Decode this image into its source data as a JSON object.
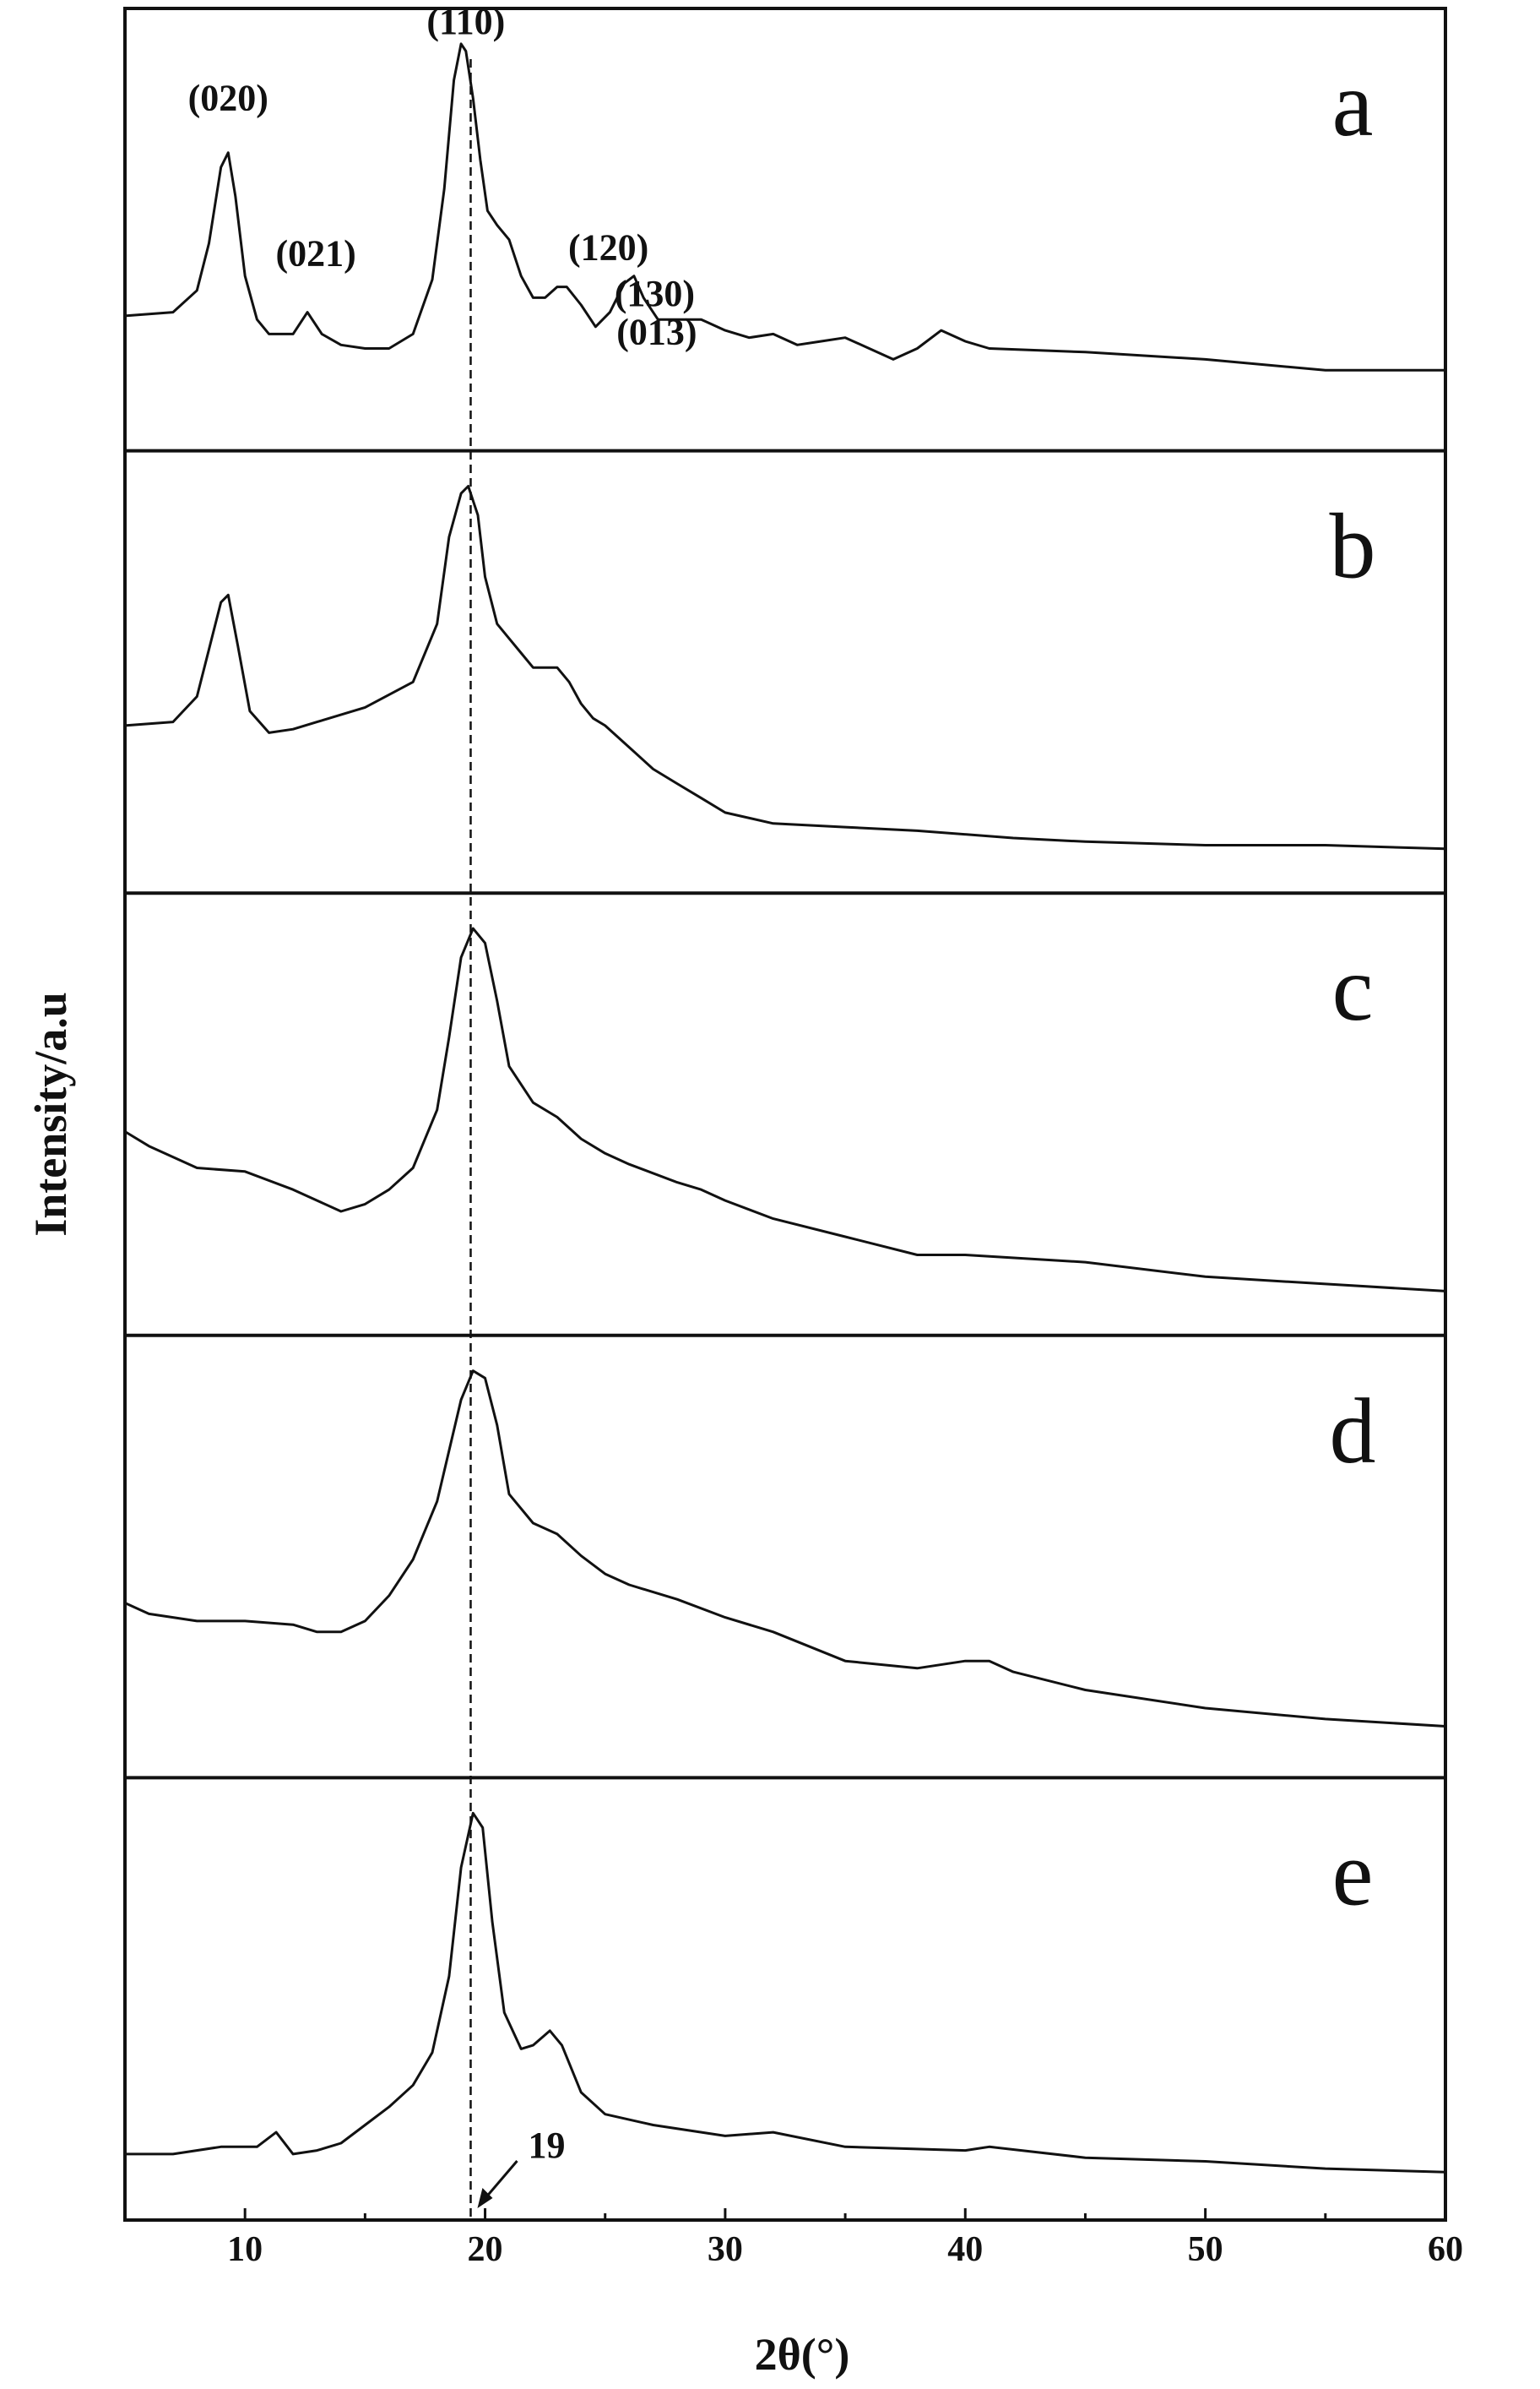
{
  "chart_data": {
    "type": "line",
    "title": "",
    "xlabel": "2θ(°)",
    "ylabel": "Intensity/a.u",
    "xlim": [
      5,
      60
    ],
    "xticks": [
      10,
      20,
      30,
      40,
      50,
      60
    ],
    "grid": false,
    "stacked_panels": true,
    "reference_line": {
      "x": 19.4,
      "label": "19",
      "style": "dashed"
    },
    "series": [
      {
        "panel": "a",
        "x": [
          5,
          7,
          8,
          8.5,
          9,
          9.3,
          9.6,
          10,
          10.5,
          11,
          12,
          12.6,
          13.2,
          14,
          15,
          16,
          17,
          17.8,
          18.3,
          18.7,
          19,
          19.2,
          19.5,
          19.8,
          20.1,
          20.5,
          21,
          21.5,
          22,
          22.5,
          23,
          23.4,
          24,
          24.6,
          25.2,
          25.8,
          26.2,
          26.6,
          27.2,
          28,
          29,
          30,
          31,
          32,
          33,
          34,
          35,
          36,
          37,
          38,
          39,
          40,
          41,
          45,
          50,
          55,
          60
        ],
        "y": [
          0.25,
          0.26,
          0.32,
          0.45,
          0.66,
          0.7,
          0.58,
          0.36,
          0.24,
          0.2,
          0.2,
          0.26,
          0.2,
          0.17,
          0.16,
          0.16,
          0.2,
          0.35,
          0.6,
          0.9,
          1.0,
          0.98,
          0.85,
          0.68,
          0.54,
          0.5,
          0.46,
          0.36,
          0.3,
          0.3,
          0.33,
          0.33,
          0.28,
          0.22,
          0.26,
          0.34,
          0.36,
          0.3,
          0.24,
          0.24,
          0.24,
          0.21,
          0.19,
          0.2,
          0.17,
          0.18,
          0.19,
          0.16,
          0.13,
          0.16,
          0.21,
          0.18,
          0.16,
          0.15,
          0.13,
          0.1,
          0.1
        ]
      },
      {
        "panel": "b",
        "x": [
          5,
          7,
          8,
          8.5,
          9,
          9.3,
          9.7,
          10.2,
          11,
          12,
          13,
          15,
          17,
          18,
          18.5,
          19,
          19.3,
          19.7,
          20,
          20.5,
          21,
          21.5,
          22,
          22.5,
          23,
          23.5,
          24,
          24.5,
          25,
          26,
          27,
          28,
          29,
          30,
          32,
          35,
          38,
          42,
          45,
          50,
          55,
          60
        ],
        "y": [
          0.34,
          0.35,
          0.42,
          0.55,
          0.68,
          0.7,
          0.56,
          0.38,
          0.32,
          0.33,
          0.35,
          0.39,
          0.46,
          0.62,
          0.86,
          0.98,
          1.0,
          0.92,
          0.75,
          0.62,
          0.58,
          0.54,
          0.5,
          0.5,
          0.5,
          0.46,
          0.4,
          0.36,
          0.34,
          0.28,
          0.22,
          0.18,
          0.14,
          0.1,
          0.07,
          0.06,
          0.05,
          0.03,
          0.02,
          0.01,
          0.01,
          0.0
        ]
      },
      {
        "panel": "c",
        "x": [
          5,
          6,
          8,
          10,
          12,
          13,
          14,
          15,
          16,
          17,
          18,
          18.5,
          19,
          19.5,
          20,
          20.5,
          21,
          22,
          23,
          24,
          25,
          26,
          28,
          29,
          30,
          32,
          35,
          38,
          40,
          45,
          50,
          55,
          60
        ],
        "y": [
          0.44,
          0.4,
          0.34,
          0.33,
          0.28,
          0.25,
          0.22,
          0.24,
          0.28,
          0.34,
          0.5,
          0.7,
          0.92,
          1.0,
          0.96,
          0.8,
          0.62,
          0.52,
          0.48,
          0.42,
          0.38,
          0.35,
          0.3,
          0.28,
          0.25,
          0.2,
          0.15,
          0.1,
          0.1,
          0.08,
          0.04,
          0.02,
          0.0
        ]
      },
      {
        "panel": "d",
        "x": [
          5,
          6,
          8,
          10,
          12,
          13,
          14,
          15,
          16,
          17,
          18,
          18.5,
          19,
          19.5,
          20,
          20.5,
          21,
          22,
          23,
          24,
          25,
          26,
          28,
          30,
          32,
          35,
          38,
          40,
          41,
          42,
          45,
          50,
          55,
          60
        ],
        "y": [
          0.36,
          0.33,
          0.31,
          0.31,
          0.3,
          0.28,
          0.28,
          0.31,
          0.38,
          0.48,
          0.64,
          0.78,
          0.92,
          1.0,
          0.98,
          0.85,
          0.66,
          0.58,
          0.55,
          0.49,
          0.44,
          0.41,
          0.37,
          0.32,
          0.28,
          0.2,
          0.18,
          0.2,
          0.2,
          0.17,
          0.12,
          0.07,
          0.04,
          0.02
        ]
      },
      {
        "panel": "e",
        "x": [
          5,
          7,
          9,
          10.5,
          11.3,
          12,
          13,
          14,
          15,
          16,
          17,
          17.8,
          18.5,
          19,
          19.5,
          19.9,
          20.3,
          20.8,
          21.5,
          22,
          22.7,
          23.2,
          24,
          25,
          27,
          30,
          32,
          35,
          40,
          41,
          45,
          50,
          55,
          60
        ],
        "y": [
          0.06,
          0.06,
          0.08,
          0.08,
          0.12,
          0.06,
          0.07,
          0.09,
          0.14,
          0.19,
          0.25,
          0.34,
          0.55,
          0.85,
          1.0,
          0.96,
          0.7,
          0.45,
          0.35,
          0.36,
          0.4,
          0.36,
          0.23,
          0.17,
          0.14,
          0.11,
          0.12,
          0.08,
          0.07,
          0.08,
          0.05,
          0.04,
          0.02,
          0.01
        ]
      }
    ],
    "panel_letters": [
      "a",
      "b",
      "c",
      "d",
      "e"
    ],
    "peak_labels": [
      {
        "panel": "a",
        "text": "(020)",
        "x": 9.3
      },
      {
        "panel": "a",
        "text": "(021)",
        "x": 12.6
      },
      {
        "panel": "a",
        "text": "(110)",
        "x": 19.2
      },
      {
        "panel": "a",
        "text": "(120)",
        "x": 22.5
      },
      {
        "panel": "a",
        "text": "(130)",
        "x": 24.6
      },
      {
        "panel": "a",
        "text": "(013)",
        "x": 26.8
      }
    ]
  }
}
